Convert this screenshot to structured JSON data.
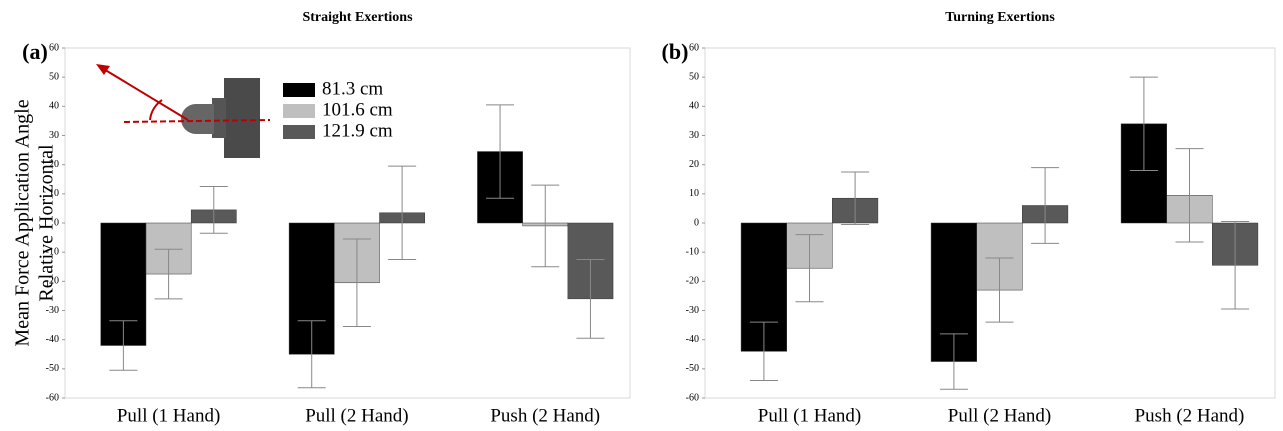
{
  "chart_data": [
    {
      "type": "bar",
      "title": "Straight Exertions",
      "panel_label": "(a)",
      "ylabel": [
        "Mean Force Application Angle",
        "Relative Horizontal"
      ],
      "categories": [
        "Pull (1 Hand)",
        "Pull (2 Hand)",
        "Push (2 Hand)"
      ],
      "series": [
        {
          "name": "81.3 cm",
          "color": "#000000",
          "values": [
            -42,
            -45,
            24.5
          ],
          "errors": [
            8.5,
            11.5,
            16
          ]
        },
        {
          "name": "101.6 cm",
          "color": "#bfbfbf",
          "values": [
            -17.5,
            -20.5,
            -1
          ],
          "errors": [
            8.5,
            15,
            14
          ]
        },
        {
          "name": "121.9 cm",
          "color": "#595959",
          "values": [
            4.5,
            3.5,
            -26
          ],
          "errors": [
            8,
            16,
            13.5
          ]
        }
      ],
      "ylim": [
        -60,
        60
      ],
      "yticks": [
        -60,
        -50,
        -40,
        -30,
        -20,
        -10,
        0,
        10,
        20,
        30,
        40,
        50,
        60
      ]
    },
    {
      "type": "bar",
      "title": "Turning Exertions",
      "panel_label": "(b)",
      "categories": [
        "Pull (1 Hand)",
        "Pull (2 Hand)",
        "Push (2 Hand)"
      ],
      "series": [
        {
          "color": "#000000",
          "values": [
            -44,
            -47.5,
            34
          ],
          "errors": [
            10,
            9.5,
            16
          ]
        },
        {
          "color": "#bfbfbf",
          "values": [
            -15.5,
            -23,
            9.5
          ],
          "errors": [
            11.5,
            11,
            16
          ]
        },
        {
          "color": "#595959",
          "values": [
            8.5,
            6,
            -14.5
          ],
          "errors": [
            9,
            13,
            15
          ]
        }
      ],
      "ylim": [
        -60,
        60
      ],
      "yticks": [
        -60,
        -50,
        -40,
        -30,
        -20,
        -10,
        0,
        10,
        20,
        30,
        40,
        50,
        60
      ]
    }
  ]
}
